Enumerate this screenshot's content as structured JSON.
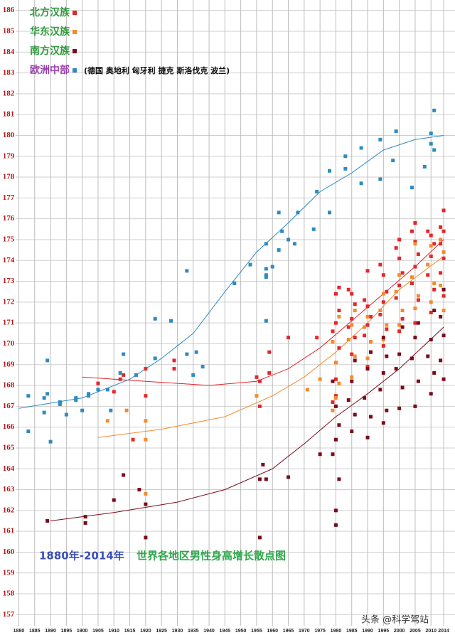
{
  "chart_data": {
    "type": "scatter",
    "xlim": [
      1879,
      2016
    ],
    "ylim": [
      156.5,
      186.5
    ],
    "xticks": [
      1880,
      1885,
      1890,
      1895,
      1900,
      1905,
      1910,
      1915,
      1920,
      1925,
      1930,
      1935,
      1940,
      1945,
      1950,
      1955,
      1960,
      1965,
      1970,
      1975,
      1980,
      1985,
      1990,
      1995,
      2000,
      2005,
      2010,
      2014
    ],
    "yticks": [
      157,
      158,
      159,
      160,
      161,
      162,
      163,
      164,
      165,
      166,
      167,
      168,
      169,
      170,
      171,
      172,
      173,
      174,
      175,
      176,
      177,
      178,
      179,
      180,
      181,
      182,
      183,
      184,
      185,
      186
    ],
    "grid": true,
    "legend_note": "(德国 奥地利 匈牙利  捷克 斯洛伐克 波兰)",
    "annotation_years": "1880年-2014年",
    "annotation_title": "世界各地区男性身高增长散点图",
    "watermark": "头条 @科学驾站",
    "series": [
      {
        "name": "北方汉族",
        "color": "#e3262d",
        "x": [
          1905,
          1910,
          1912,
          1913,
          1916,
          1920,
          1920,
          1929,
          1929,
          1955,
          1956,
          1956,
          1959,
          1959,
          1965,
          1974,
          1979,
          1980,
          1980,
          1981,
          1979,
          1980,
          1981,
          1980,
          1981,
          1985,
          1986,
          1984,
          1985,
          1986,
          1985,
          1984,
          1990,
          1991,
          1989,
          1990,
          1991,
          1990,
          1989,
          1990,
          1995,
          1996,
          1994,
          1995,
          1996,
          1995,
          1994,
          2000,
          2001,
          1999,
          2000,
          2001,
          2000,
          1999,
          2000,
          2005,
          2006,
          2004,
          2005,
          2006,
          2005,
          2004,
          2005,
          2010,
          2011,
          2009,
          2010,
          2011,
          2010,
          2009,
          2014,
          2013,
          2014,
          2013,
          2014,
          2013,
          2014
        ],
        "values": [
          168.1,
          167.7,
          168.3,
          168.5,
          165.4,
          168.8,
          167.5,
          169.2,
          168.8,
          168.4,
          168.2,
          167.0,
          169.6,
          168.6,
          170.3,
          170.3,
          167.2,
          167.5,
          168.3,
          169.8,
          170.6,
          171.0,
          171.6,
          172.4,
          172.7,
          169.5,
          170.3,
          170.8,
          171.2,
          171.9,
          172.4,
          172.6,
          168.9,
          169.6,
          170.4,
          170.9,
          171.3,
          171.8,
          172.1,
          173.5,
          169.9,
          170.7,
          171.4,
          172.0,
          172.5,
          173.3,
          173.8,
          170.6,
          171.2,
          172.2,
          172.8,
          173.4,
          174.1,
          174.6,
          175.0,
          171.0,
          172.1,
          172.9,
          173.7,
          174.3,
          174.9,
          175.4,
          175.8,
          171.5,
          172.6,
          173.3,
          174.2,
          174.8,
          175.2,
          175.4,
          172.3,
          173.4,
          174.1,
          174.8,
          175.4,
          175.6,
          176.4
        ],
        "trend": {
          "x": [
            1900,
            1920,
            1940,
            1955,
            1965,
            1975,
            1985,
            1995,
            2005,
            2014
          ],
          "values": [
            168.4,
            168.2,
            168.0,
            168.2,
            168.8,
            169.8,
            171.1,
            172.4,
            173.7,
            175.0
          ]
        }
      },
      {
        "name": "华东汉族",
        "color": "#f28c2e",
        "x": [
          1908,
          1914,
          1920,
          1920,
          1920,
          1955,
          1971,
          1975,
          1979,
          1980,
          1981,
          1980,
          1979,
          1981,
          1985,
          1986,
          1984,
          1985,
          1986,
          1990,
          1991,
          1989,
          1990,
          1995,
          1996,
          1994,
          1995,
          2000,
          2001,
          1999,
          2000,
          2005,
          2006,
          2004,
          2005,
          2010,
          2011,
          2009,
          2010,
          2014,
          2013,
          2014,
          2013
        ],
        "values": [
          166.3,
          166.8,
          166.3,
          165.4,
          162.8,
          167.5,
          167.8,
          168.3,
          166.8,
          167.4,
          168.1,
          169.1,
          170.1,
          171.3,
          168.4,
          169.4,
          170.2,
          170.9,
          171.6,
          169.3,
          170.1,
          170.8,
          171.3,
          170.2,
          170.9,
          171.6,
          172.4,
          170.9,
          171.6,
          172.5,
          173.3,
          171.7,
          172.3,
          173.2,
          174.8,
          172.0,
          172.9,
          173.8,
          174.7,
          171.6,
          172.8,
          174.4,
          175.0
        ],
        "trend": {
          "x": [
            1905,
            1925,
            1945,
            1960,
            1970,
            1980,
            1990,
            2000,
            2014
          ],
          "values": [
            165.5,
            165.9,
            166.5,
            167.5,
            168.4,
            169.6,
            171.0,
            172.6,
            174.2
          ]
        }
      },
      {
        "name": "南方汉族",
        "color": "#7a0c1c",
        "x": [
          1889,
          1901,
          1901,
          1910,
          1913,
          1918,
          1920,
          1920,
          1956,
          1956,
          1957,
          1958,
          1965,
          1975,
          1980,
          1980,
          1981,
          1979,
          1980,
          1981,
          1980,
          1979,
          1985,
          1986,
          1984,
          1985,
          1986,
          1990,
          1991,
          1989,
          1990,
          1991,
          1995,
          1996,
          1994,
          1995,
          1996,
          1995,
          2000,
          2001,
          1999,
          2000,
          2001,
          2005,
          2006,
          2004,
          2005,
          2006,
          2010,
          2011,
          2009,
          2010,
          2011,
          2014,
          2013,
          2014,
          2013,
          2014
        ],
        "values": [
          161.5,
          161.7,
          161.4,
          162.5,
          163.7,
          163.0,
          162.3,
          160.7,
          160.7,
          163.5,
          164.2,
          163.5,
          163.6,
          164.7,
          161.3,
          162.0,
          163.5,
          164.7,
          165.4,
          166.1,
          167.0,
          168.2,
          165.8,
          166.6,
          167.3,
          168.2,
          169.2,
          165.5,
          166.5,
          167.4,
          168.8,
          169.6,
          166.2,
          166.8,
          167.8,
          168.6,
          169.4,
          170.3,
          166.9,
          167.9,
          168.8,
          169.5,
          170.8,
          167.0,
          168.2,
          169.3,
          170.3,
          171.0,
          167.6,
          168.6,
          169.4,
          170.2,
          171.6,
          168.3,
          169.2,
          170.4,
          171.3,
          172.6
        ],
        "trend": {
          "x": [
            1890,
            1910,
            1930,
            1945,
            1960,
            1970,
            1980,
            1990,
            2000,
            2014
          ],
          "values": [
            161.5,
            161.9,
            162.4,
            163.0,
            164.0,
            165.2,
            166.5,
            167.6,
            168.8,
            170.8
          ]
        }
      },
      {
        "name": "欧洲中部",
        "color": "#2e8bc0",
        "x": [
          1883,
          1883,
          1888,
          1889,
          1889,
          1888,
          1890,
          1893,
          1893,
          1895,
          1898,
          1898,
          1900,
          1902,
          1902,
          1905,
          1908,
          1909,
          1912,
          1913,
          1917,
          1923,
          1923,
          1928,
          1933,
          1933,
          1935,
          1936,
          1938,
          1948,
          1953,
          1958,
          1958,
          1958,
          1958,
          1958,
          1960,
          1962,
          1963,
          1962,
          1965,
          1967,
          1968,
          1973,
          1974,
          1978,
          1978,
          1983,
          1983,
          1988,
          1988,
          1994,
          1994,
          1999,
          1998,
          2004,
          2008,
          2010,
          2010,
          2011,
          2011
        ],
        "values": [
          167.5,
          165.8,
          167.4,
          167.6,
          169.2,
          166.7,
          165.3,
          167.2,
          167.1,
          166.6,
          167.4,
          167.3,
          166.8,
          167.6,
          167.5,
          167.8,
          167.8,
          166.8,
          168.6,
          169.5,
          168.5,
          171.2,
          169.3,
          171.1,
          173.5,
          169.5,
          168.5,
          169.6,
          168.9,
          172.9,
          173.8,
          173.6,
          173.3,
          173.2,
          174.8,
          171.1,
          173.7,
          176.3,
          175.4,
          174.5,
          175.0,
          174.8,
          176.3,
          175.5,
          177.3,
          178.3,
          176.3,
          179.0,
          178.4,
          179.4,
          177.7,
          179.8,
          177.9,
          180.2,
          178.8,
          177.5,
          178.5,
          180.1,
          179.6,
          179.3,
          181.2
        ],
        "trend": {
          "x": [
            1880,
            1900,
            1915,
            1925,
            1935,
            1945,
            1955,
            1965,
            1975,
            1985,
            1995,
            2005,
            2014
          ],
          "values": [
            166.9,
            167.4,
            168.3,
            169.3,
            170.5,
            172.5,
            174.4,
            175.8,
            177.3,
            178.2,
            179.3,
            179.8,
            180.0
          ]
        }
      }
    ]
  }
}
